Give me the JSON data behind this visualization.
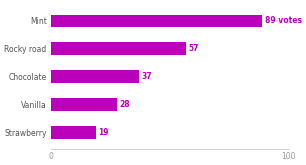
{
  "categories": [
    "Strawberry",
    "Vanilla",
    "Chocolate",
    "Rocky road",
    "Mint"
  ],
  "values": [
    19,
    28,
    37,
    57,
    89
  ],
  "bar_color": "#bb00bb",
  "label_color": "#bb00bb",
  "axis_color": "#cccccc",
  "tick_label_color": "#999999",
  "ylabel_color": "#555555",
  "background_color": "#ffffff",
  "xlim": [
    0,
    100
  ],
  "xticks": [
    0,
    100
  ],
  "annotations": [
    "19",
    "28",
    "37",
    "57",
    "89 votes"
  ],
  "bar_height": 0.45,
  "label_fontsize": 5.5,
  "ytick_fontsize": 5.5,
  "xtick_fontsize": 5.5
}
